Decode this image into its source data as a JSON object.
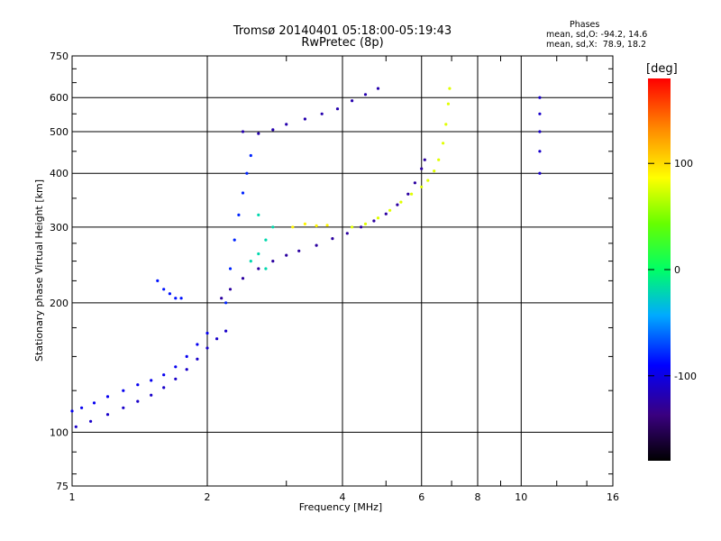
{
  "title": "Tromsø 20140401 05:18:00-05:19:43",
  "subtitle": "RwPretec (8p)",
  "stats": {
    "heading": "Phases",
    "line_o": "mean, sd,O: -94.2, 14.6",
    "line_x": "mean, sd,X:  78.9, 18.2"
  },
  "colorbar": {
    "unit": "[deg]",
    "ticks": [
      100,
      0,
      -100
    ],
    "range": [
      -180,
      180
    ]
  },
  "chart_data": {
    "type": "scatter",
    "title": "Tromsø 20140401 05:18:00-05:19:43",
    "subtitle": "RwPretec (8p)",
    "xlabel": "Frequency [MHz]",
    "ylabel": "Stationary phase Virtual Height [km]",
    "xscale": "log",
    "yscale": "log",
    "xlim": [
      1,
      16
    ],
    "ylim": [
      75,
      750
    ],
    "xticks": [
      1,
      2,
      4,
      6,
      8,
      10,
      16
    ],
    "xtick_labels": [
      "1",
      "2",
      "4",
      "6",
      "8",
      "10",
      "16"
    ],
    "yticks": [
      75,
      100,
      200,
      300,
      400,
      500,
      600,
      750
    ],
    "ytick_labels": [
      "75",
      "100",
      "200",
      "300",
      "400",
      "500",
      "600",
      "750"
    ],
    "grid": true,
    "color_scale": "rainbow phase (deg)",
    "series": [
      {
        "points": [
          [
            1.02,
            103
          ],
          [
            1.1,
            106
          ],
          [
            1.2,
            110
          ],
          [
            1.3,
            114
          ],
          [
            1.4,
            118
          ],
          [
            1.5,
            122
          ],
          [
            1.6,
            127
          ],
          [
            1.7,
            133
          ],
          [
            1.8,
            140
          ],
          [
            1.9,
            148
          ],
          [
            2.0,
            157
          ],
          [
            2.1,
            165
          ],
          [
            2.2,
            172
          ]
        ],
        "phase": -110
      },
      {
        "points": [
          [
            1.0,
            112
          ],
          [
            1.05,
            114
          ],
          [
            1.12,
            117
          ],
          [
            1.2,
            121
          ],
          [
            1.3,
            125
          ],
          [
            1.4,
            129
          ],
          [
            1.5,
            132
          ],
          [
            1.6,
            136
          ],
          [
            1.7,
            142
          ],
          [
            1.8,
            150
          ],
          [
            1.9,
            160
          ],
          [
            2.0,
            170
          ]
        ],
        "phase": -95
      },
      {
        "points": [
          [
            2.15,
            205
          ],
          [
            2.25,
            215
          ],
          [
            2.4,
            228
          ],
          [
            2.6,
            240
          ],
          [
            2.8,
            250
          ],
          [
            3.0,
            258
          ],
          [
            3.2,
            264
          ],
          [
            3.5,
            272
          ],
          [
            3.8,
            282
          ],
          [
            4.1,
            290
          ],
          [
            4.4,
            300
          ],
          [
            4.7,
            310
          ],
          [
            5.0,
            322
          ],
          [
            5.3,
            338
          ],
          [
            5.6,
            358
          ],
          [
            5.8,
            380
          ],
          [
            6.0,
            410
          ],
          [
            6.1,
            430
          ]
        ],
        "phase": -125
      },
      {
        "points": [
          [
            2.4,
            500
          ],
          [
            2.6,
            495
          ],
          [
            2.8,
            505
          ],
          [
            3.0,
            520
          ],
          [
            3.3,
            535
          ],
          [
            3.6,
            550
          ],
          [
            3.9,
            565
          ],
          [
            4.2,
            590
          ],
          [
            4.5,
            610
          ],
          [
            4.8,
            630
          ]
        ],
        "phase": -120
      },
      {
        "points": [
          [
            4.2,
            300
          ],
          [
            4.5,
            305
          ],
          [
            4.8,
            315
          ],
          [
            5.1,
            328
          ],
          [
            5.4,
            343
          ],
          [
            5.7,
            358
          ],
          [
            6.0,
            372
          ],
          [
            6.2,
            385
          ],
          [
            6.4,
            405
          ],
          [
            6.55,
            430
          ],
          [
            6.7,
            470
          ],
          [
            6.8,
            520
          ],
          [
            6.88,
            580
          ],
          [
            6.93,
            630
          ]
        ],
        "phase": 78
      },
      {
        "points": [
          [
            1.55,
            225
          ],
          [
            1.6,
            215
          ],
          [
            1.65,
            210
          ],
          [
            1.7,
            205
          ],
          [
            1.75,
            205
          ]
        ],
        "phase": -85
      },
      {
        "points": [
          [
            2.2,
            200
          ],
          [
            2.25,
            240
          ],
          [
            2.3,
            280
          ],
          [
            2.35,
            320
          ],
          [
            2.4,
            360
          ],
          [
            2.45,
            400
          ],
          [
            2.5,
            440
          ]
        ],
        "phase": -80
      },
      {
        "points": [
          [
            2.5,
            250
          ],
          [
            2.6,
            260
          ],
          [
            2.7,
            280
          ],
          [
            2.8,
            300
          ],
          [
            2.6,
            320
          ],
          [
            2.7,
            240
          ]
        ],
        "phase": -20
      },
      {
        "points": [
          [
            3.1,
            300
          ],
          [
            3.3,
            305
          ],
          [
            3.5,
            302
          ],
          [
            3.7,
            303
          ]
        ],
        "phase": 90
      },
      {
        "points": [
          [
            11.0,
            400
          ],
          [
            11.0,
            450
          ],
          [
            11.0,
            500
          ],
          [
            11.0,
            550
          ],
          [
            11.0,
            600
          ]
        ],
        "phase": -110
      }
    ]
  }
}
